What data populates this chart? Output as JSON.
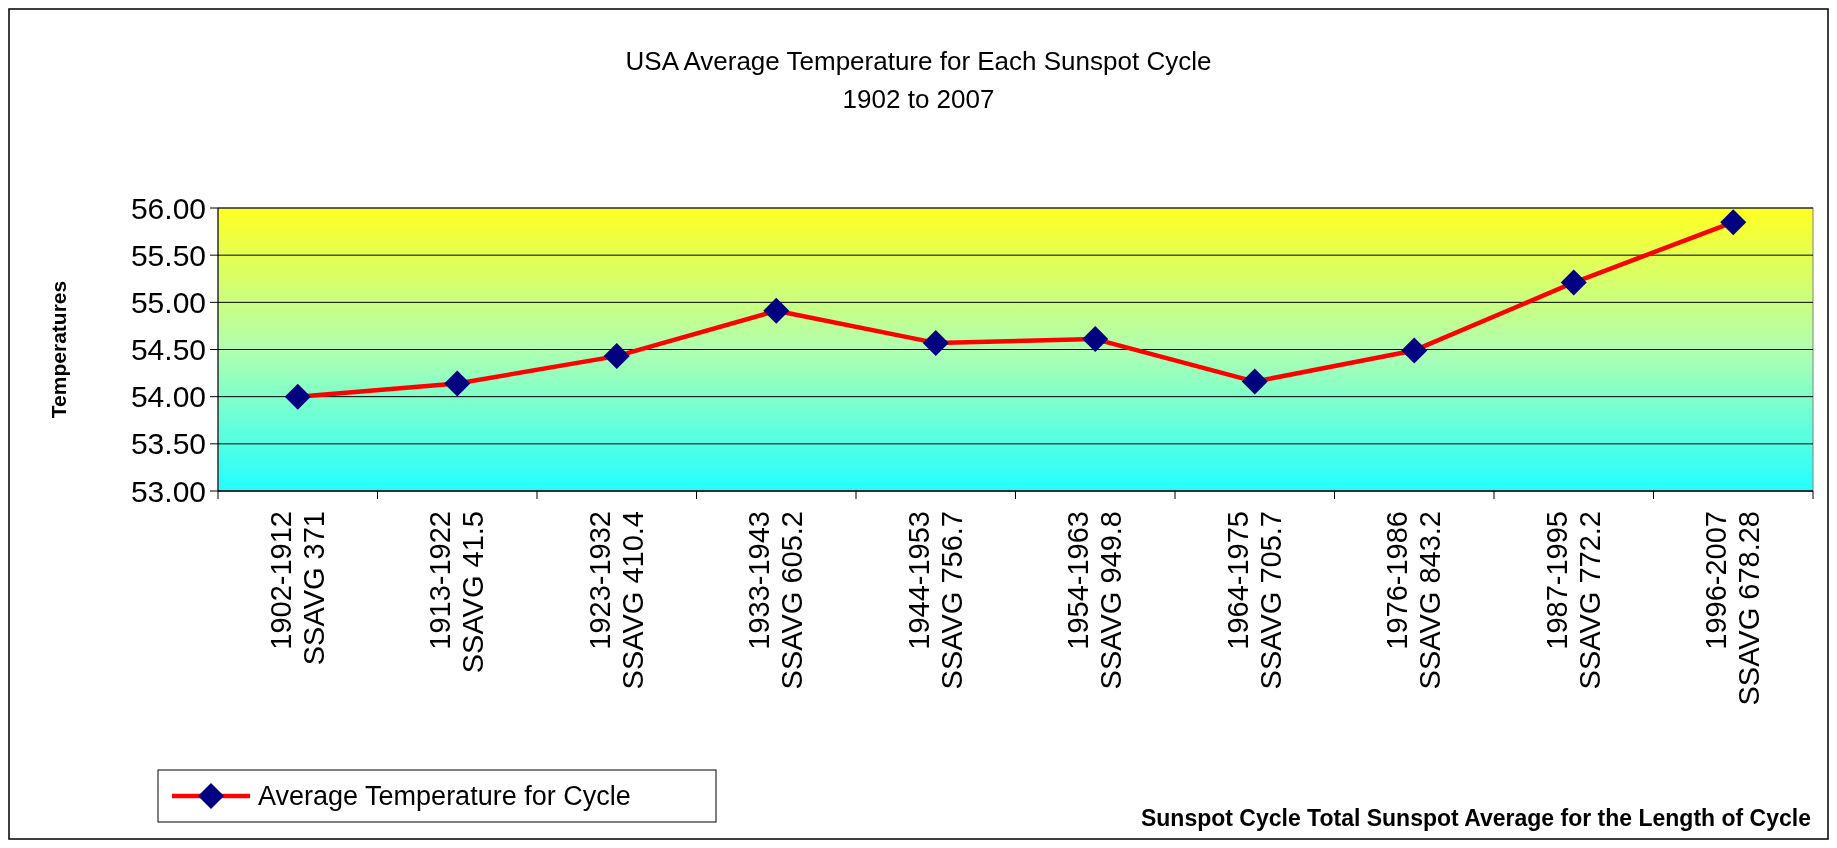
{
  "chart_data": {
    "type": "line",
    "title": "USA Average Temperature  for Each Sunspot  Cycle",
    "subtitle": "1902 to 2007",
    "xlabel": "Sunspot Cycle Total Sunspot Average for the Length of Cycle",
    "ylabel": "Temperatures",
    "categories": [
      "1902-1912\nSSAVG  371",
      "1913-1922\nSSAVG  41.5",
      "1923-1932\nSSAVG  410.4",
      "1933-1943\nSSAVG 605.2",
      "1944-1953\nSSAVG  756.7",
      "1954-1963\nSSAVG  949.8",
      "1964-1975\nSSAVG  705.7",
      "1976-1986\nSSAVG  843.2",
      "1987-1995\nSSAVG  772.2",
      "1996-2007\nSSAVG  678.28"
    ],
    "series": [
      {
        "name": "Average Temperature for Cycle",
        "color": "#ff0000",
        "values": [
          54.0,
          54.14,
          54.43,
          54.91,
          54.57,
          54.61,
          54.16,
          54.49,
          55.21,
          55.85
        ]
      }
    ],
    "ylim": [
      53,
      56
    ],
    "yticks": [
      {
        "value": 53,
        "label": "53.00"
      },
      {
        "value": 53.5,
        "label": "53.50"
      },
      {
        "value": 54,
        "label": "54.00"
      },
      {
        "value": 54.5,
        "label": "54.50"
      },
      {
        "value": 55,
        "label": "55.00"
      },
      {
        "value": 55.5,
        "label": "55.50"
      },
      {
        "value": 56,
        "label": "56.00"
      }
    ],
    "grid": "y",
    "legend": "bottom left",
    "marker": "diamond",
    "line_style": "solid"
  }
}
